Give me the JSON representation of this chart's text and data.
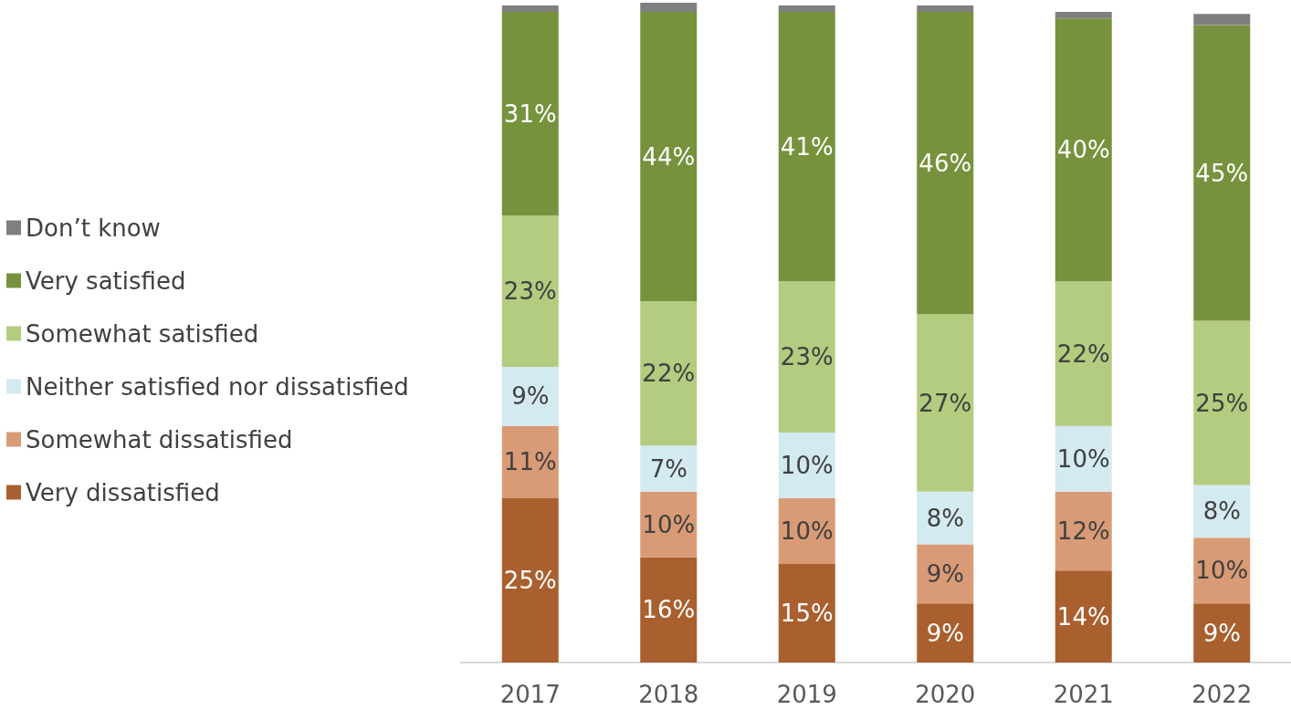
{
  "chart_data": {
    "type": "bar",
    "stacked": true,
    "legend": "left",
    "categories": [
      "2017",
      "2018",
      "2019",
      "2020",
      "2021",
      "2022"
    ],
    "series": [
      {
        "name": "Very dissatisfied",
        "color": "#a95f2e",
        "values": [
          25,
          16,
          15,
          9,
          14,
          9
        ],
        "value_labels": [
          "25%",
          "16%",
          "15%",
          "9%",
          "14%",
          "9%"
        ]
      },
      {
        "name": "Somewhat dissatisfied",
        "color": "#d99b76",
        "values": [
          11,
          10,
          10,
          9,
          12,
          10
        ],
        "value_labels": [
          "11%",
          "10%",
          "10%",
          "9%",
          "12%",
          "10%"
        ]
      },
      {
        "name": "Neither satisfied nor dissatisfied",
        "color": "#d3eaf0",
        "values": [
          9,
          7,
          10,
          8,
          10,
          8
        ],
        "value_labels": [
          "9%",
          "7%",
          "10%",
          "8%",
          "10%",
          "8%"
        ]
      },
      {
        "name": "Somewhat satisfied",
        "color": "#b3cc7f",
        "values": [
          23,
          22,
          23,
          27,
          22,
          25
        ],
        "value_labels": [
          "23%",
          "22%",
          "23%",
          "27%",
          "22%",
          "25%"
        ]
      },
      {
        "name": "Very satisfied",
        "color": "#76923c",
        "values": [
          31,
          44,
          41,
          46,
          40,
          45
        ],
        "value_labels": [
          "31%",
          "44%",
          "41%",
          "46%",
          "40%",
          "45%"
        ]
      },
      {
        "name": "Don’t know",
        "color": "#7f7f7f",
        "values": [
          1,
          1.4,
          1,
          1,
          1,
          1.7
        ],
        "value_labels": [
          null,
          null,
          null,
          null,
          null,
          null
        ]
      }
    ]
  }
}
